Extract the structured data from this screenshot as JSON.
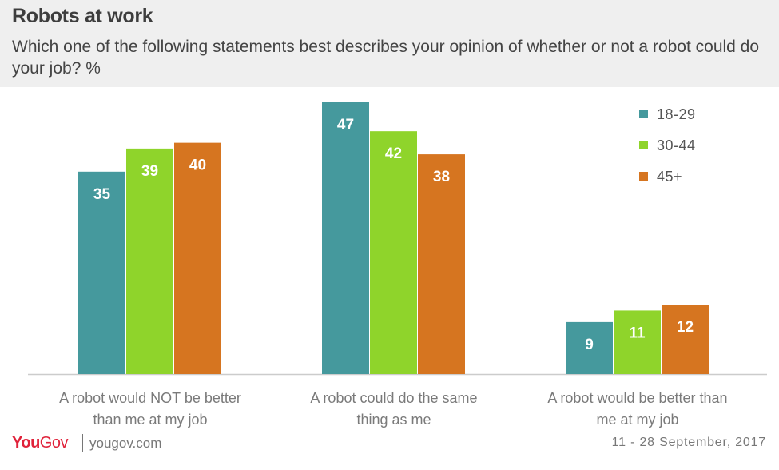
{
  "title": "Robots at work",
  "subtitle": "Which one of the following statements best describes your opinion of whether or not a robot could do your job? %",
  "footer": {
    "logo_you": "You",
    "logo_gov": "Gov",
    "site": "yougov.com",
    "date": "11 - 28 September, 2017"
  },
  "colors": {
    "teal": "#45999d",
    "green": "#8fd42b",
    "orange": "#d67520",
    "header_bg": "#efefef",
    "brand_red": "#e0223a"
  },
  "chart_data": {
    "type": "bar",
    "title": "Robots at work",
    "categories": [
      [
        "A robot would NOT be better",
        "than me at my job"
      ],
      [
        "A robot could do the same",
        "thing as me"
      ],
      [
        "A robot would be better than",
        "me at my job"
      ]
    ],
    "series": [
      {
        "name": "18-29",
        "color": "#45999d",
        "values": [
          35,
          47,
          9
        ]
      },
      {
        "name": "30-44",
        "color": "#8fd42b",
        "values": [
          39,
          42,
          11
        ]
      },
      {
        "name": "45+",
        "color": "#d67520",
        "values": [
          40,
          38,
          12
        ]
      }
    ],
    "ylim": [
      0,
      47
    ],
    "grid": false,
    "legend": "top-right",
    "data_labels": true
  }
}
